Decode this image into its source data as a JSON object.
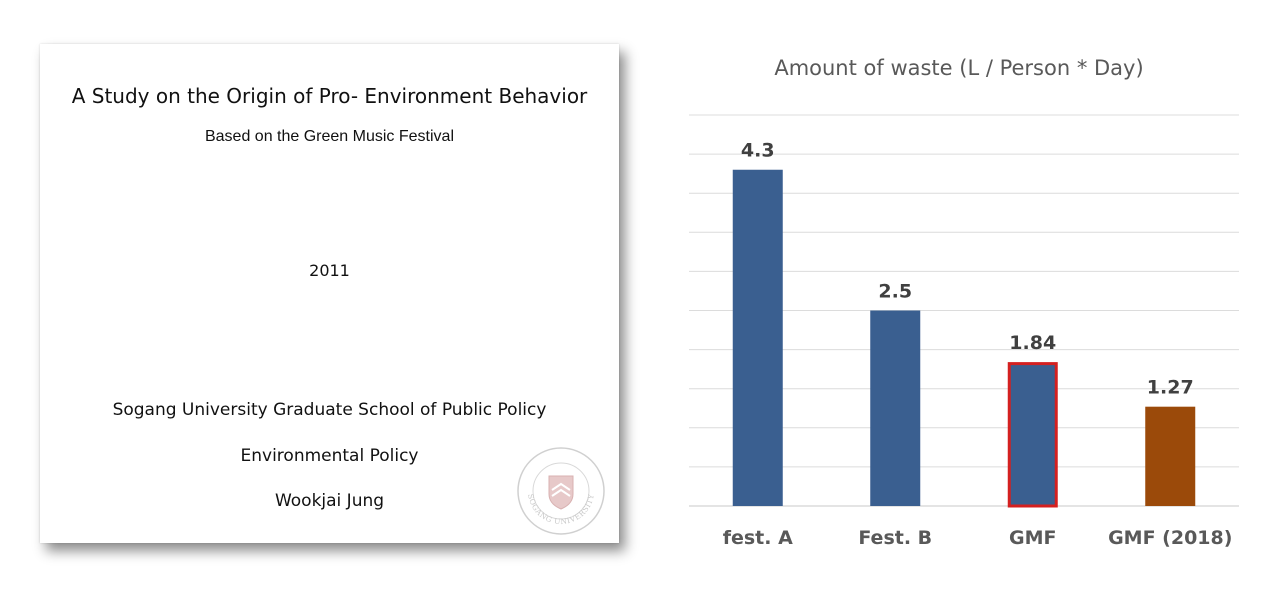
{
  "cover": {
    "title": "A Study on the Origin of Pro- Environment Behavior",
    "subtitle": "Based on the Green Music Festival",
    "year": "2011",
    "institution": "Sogang University Graduate School of Public Policy",
    "department": "Environmental Policy",
    "author": "Wookjai Jung",
    "seal_icon": "university-seal-icon",
    "seal_text": "SOGANG UNIVERSITY"
  },
  "chart_data": {
    "type": "bar",
    "title": "Amount of waste (L / Person * Day)",
    "categories": [
      "fest. A",
      "Fest. B",
      "GMF",
      "GMF (2018)"
    ],
    "values": [
      4.3,
      2.5,
      1.84,
      1.27
    ],
    "data_labels": [
      "4.3",
      "2.5",
      "1.84",
      "1.27"
    ],
    "ylim": [
      0,
      5
    ],
    "grid": true,
    "bar_colors": [
      "#3a5f90",
      "#3a5f90",
      "#3a5f90",
      "#9b4a0a"
    ],
    "highlight_outline": {
      "category": "GMF",
      "color": "#d42020"
    }
  }
}
